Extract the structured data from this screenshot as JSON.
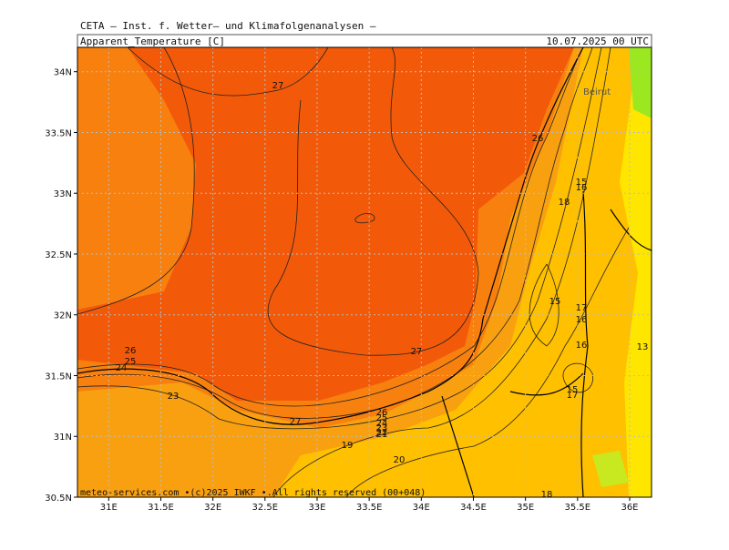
{
  "header": {
    "institute": "CETA — Inst. f. Wetter— und Klimafolgenanalysen —",
    "variable": "Apparent_Temperature [C]",
    "valid_time": "10.07.2025 00 UTC"
  },
  "map": {
    "xlim": [
      30.7,
      36.21
    ],
    "ylim": [
      30.5,
      34.2
    ],
    "lon_ticks": [
      {
        "value": 31,
        "label": "31E"
      },
      {
        "value": 31.5,
        "label": "31.5E"
      },
      {
        "value": 32,
        "label": "32E"
      },
      {
        "value": 32.5,
        "label": "32.5E"
      },
      {
        "value": 33,
        "label": "33E"
      },
      {
        "value": 33.5,
        "label": "33.5E"
      },
      {
        "value": 34,
        "label": "34E"
      },
      {
        "value": 34.5,
        "label": "34.5E"
      },
      {
        "value": 35,
        "label": "35E"
      },
      {
        "value": 35.5,
        "label": "35.5E"
      },
      {
        "value": 36,
        "label": "36E"
      }
    ],
    "lat_ticks": [
      {
        "value": 30.5,
        "label": "30.5N"
      },
      {
        "value": 31,
        "label": "31N"
      },
      {
        "value": 31.5,
        "label": "31.5N"
      },
      {
        "value": 32,
        "label": "32N"
      },
      {
        "value": 32.5,
        "label": "32.5N"
      },
      {
        "value": 33,
        "label": "33N"
      },
      {
        "value": 33.5,
        "label": "33.5N"
      },
      {
        "value": 34,
        "label": "34N"
      }
    ],
    "place_label": "Beirut",
    "contour_labels": [
      27,
      26,
      15,
      16,
      18,
      15,
      17,
      16,
      16,
      13,
      15,
      17,
      27,
      26,
      25,
      24,
      23,
      27,
      26,
      25,
      24,
      23,
      22,
      21,
      19,
      20,
      18
    ],
    "footer": "meteo-services.com •(c)2025 IWKF •.All rights reserved (00+048)"
  }
}
